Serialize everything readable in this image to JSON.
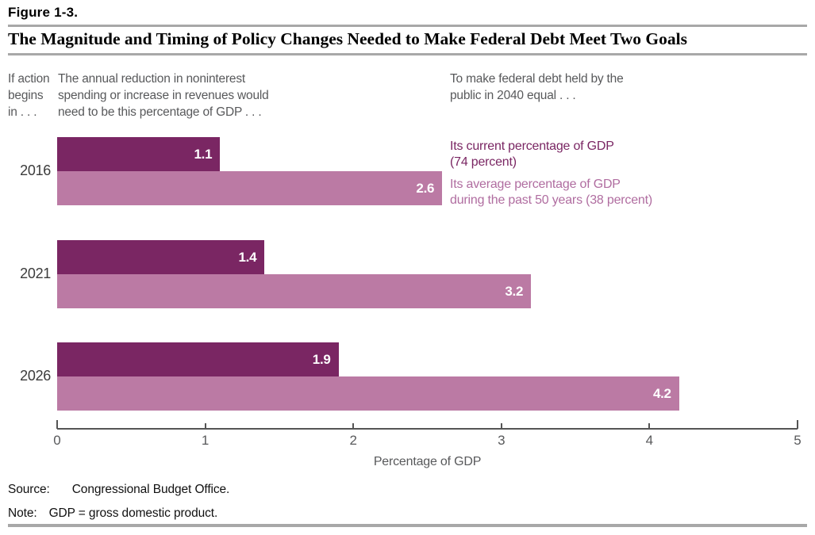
{
  "header": {
    "figure_label": "Figure 1-3.",
    "title": "The Magnitude and Timing of Policy Changes Needed to Make Federal Debt Meet Two Goals"
  },
  "intro": {
    "col1_lines": [
      "If action",
      "begins",
      "in . . ."
    ],
    "col2_lines": [
      "The annual reduction in noninterest",
      "spending or increase in revenues would",
      "need to be this percentage of GDP . . ."
    ],
    "col3_lines": [
      "To make federal debt held by the",
      "public in 2040 equal . . ."
    ]
  },
  "legend": [
    {
      "lines": [
        "Its current percentage of GDP",
        "(74 percent)"
      ],
      "color": "#7a2663"
    },
    {
      "lines": [
        "Its average percentage of GDP",
        "during the past 50 years (38 percent)"
      ],
      "color": "#b06da0"
    }
  ],
  "chart_data": {
    "type": "bar",
    "orientation": "horizontal",
    "title": "The Magnitude and Timing of Policy Changes Needed to Make Federal Debt Meet Two Goals",
    "categories": [
      "2016",
      "2021",
      "2026"
    ],
    "series": [
      {
        "name": "Its current percentage of GDP (74 percent)",
        "color": "#7a2663",
        "values": [
          1.1,
          1.4,
          1.9
        ]
      },
      {
        "name": "Its average percentage of GDP during the past 50 years (38 percent)",
        "color": "#bb7aa4",
        "values": [
          2.6,
          3.2,
          4.2
        ]
      }
    ],
    "xlabel": "Percentage of GDP",
    "xlim": [
      0,
      5
    ],
    "xticks": [
      0,
      1,
      2,
      3,
      4,
      5
    ],
    "value_labels_shown": true,
    "grid": false,
    "legend_position": "right-of-first-group"
  },
  "footer": {
    "source_label": "Source:",
    "source_text": "Congressional Budget Office.",
    "note_label": "Note:",
    "note_text": "GDP = gross domestic product."
  },
  "colors": {
    "rule": "#a8a8a8",
    "axis": "#555555",
    "muted_text": "#58595b"
  }
}
